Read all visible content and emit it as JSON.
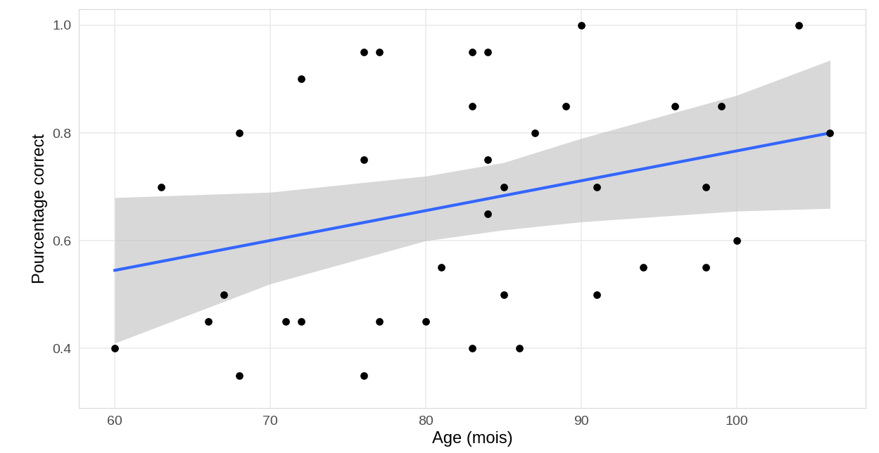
{
  "chart_data": {
    "type": "scatter",
    "xlabel": "Age (mois)",
    "ylabel": "Pourcentage correct",
    "x": [
      60,
      63,
      66,
      67,
      68,
      68,
      72,
      71,
      72,
      76,
      77,
      76,
      76,
      77,
      80,
      81,
      83,
      84,
      83,
      84,
      84,
      83,
      85,
      85,
      86,
      87,
      89,
      90,
      91,
      91,
      94,
      96,
      98,
      98,
      99,
      100,
      104,
      106
    ],
    "values": [
      0.4,
      0.7,
      0.45,
      0.5,
      0.8,
      0.35,
      0.9,
      0.45,
      0.45,
      0.95,
      0.95,
      0.75,
      0.35,
      0.45,
      0.45,
      0.55,
      0.95,
      0.95,
      0.85,
      0.75,
      0.65,
      0.4,
      0.7,
      0.5,
      0.4,
      0.8,
      0.85,
      1.0,
      0.7,
      0.5,
      0.55,
      0.85,
      0.7,
      0.55,
      0.85,
      0.6,
      1.0,
      0.8
    ],
    "color": "#000000",
    "fit": {
      "x": [
        60,
        106
      ],
      "values": [
        0.545,
        0.8
      ],
      "color": "#3366ff"
    },
    "band": {
      "x": [
        60,
        70,
        80,
        85,
        90,
        100,
        106
      ],
      "lower": [
        0.41,
        0.52,
        0.6,
        0.62,
        0.635,
        0.655,
        0.66
      ],
      "upper": [
        0.68,
        0.69,
        0.72,
        0.745,
        0.79,
        0.87,
        0.935
      ],
      "color": "#bebebe"
    },
    "xlim": [
      57.7,
      108.3
    ],
    "ylim": [
      0.29,
      1.03
    ],
    "xticks": [
      60,
      70,
      80,
      90,
      100
    ],
    "yticks": [
      {
        "value": 0.4,
        "label": "0.4"
      },
      {
        "value": 0.6,
        "label": "0.6"
      },
      {
        "value": 0.8,
        "label": "0.8"
      },
      {
        "value": 1.0,
        "label": "1.0"
      }
    ],
    "grid": true
  }
}
